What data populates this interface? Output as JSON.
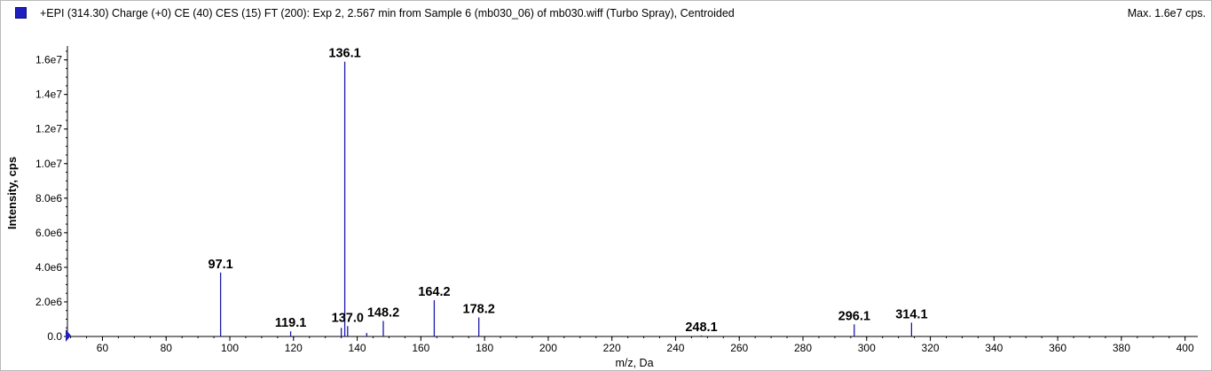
{
  "header": {
    "title": "+EPI (314.30) Charge (+0) CE (40) CES (15) FT (200): Exp 2, 2.567 min from Sample 6 (mb030_06) of mb030.wiff (Turbo Spray), Centroided",
    "max_label": "Max. 1.6e7 cps.",
    "swatch_color": "#1f1fbf"
  },
  "chart_data": {
    "type": "bar",
    "xlabel": "m/z, Da",
    "ylabel": "Intensity, cps",
    "xlim": [
      49,
      404
    ],
    "ylim": [
      0,
      16800000
    ],
    "x_ticks": [
      60,
      80,
      100,
      120,
      140,
      160,
      180,
      200,
      220,
      240,
      260,
      280,
      300,
      320,
      340,
      360,
      380,
      400
    ],
    "y_ticks": [
      {
        "value": 0,
        "label": "0.0"
      },
      {
        "value": 2000000,
        "label": "2.0e6"
      },
      {
        "value": 4000000,
        "label": "4.0e6"
      },
      {
        "value": 6000000,
        "label": "6.0e6"
      },
      {
        "value": 8000000,
        "label": "8.0e6"
      },
      {
        "value": 10000000,
        "label": "1.0e7"
      },
      {
        "value": 12000000,
        "label": "1.2e7"
      },
      {
        "value": 14000000,
        "label": "1.4e7"
      },
      {
        "value": 16000000,
        "label": "1.6e7"
      }
    ],
    "series_color": "#1a1aa8",
    "peaks": [
      {
        "mz": 97.1,
        "intensity": 3700000,
        "label": "97.1"
      },
      {
        "mz": 119.1,
        "intensity": 300000,
        "label": "119.1"
      },
      {
        "mz": 135.0,
        "intensity": 500000
      },
      {
        "mz": 136.1,
        "intensity": 15900000,
        "label": "136.1"
      },
      {
        "mz": 137.0,
        "intensity": 600000,
        "label": "137.0"
      },
      {
        "mz": 143.0,
        "intensity": 200000
      },
      {
        "mz": 148.2,
        "intensity": 900000,
        "label": "148.2"
      },
      {
        "mz": 164.2,
        "intensity": 2100000,
        "label": "164.2"
      },
      {
        "mz": 178.2,
        "intensity": 1100000,
        "label": "178.2"
      },
      {
        "mz": 248.1,
        "intensity": 60000,
        "label": "248.1"
      },
      {
        "mz": 296.1,
        "intensity": 700000,
        "label": "296.1"
      },
      {
        "mz": 314.1,
        "intensity": 800000,
        "label": "314.1"
      }
    ]
  }
}
